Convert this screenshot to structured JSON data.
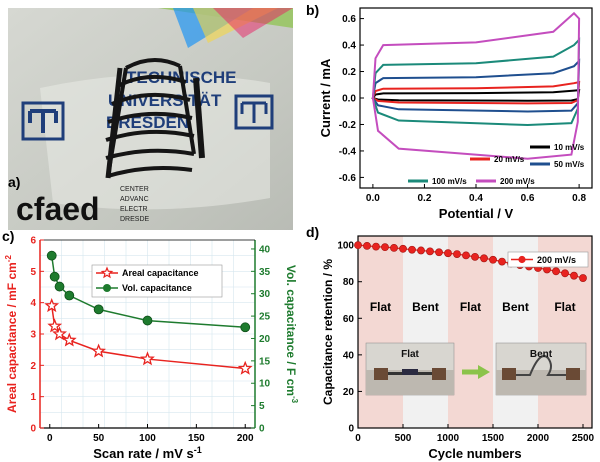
{
  "panel_labels": {
    "a": "a)",
    "b": "b)",
    "c": "c)",
    "d": "d)"
  },
  "photo": {
    "line1": "TECHNISCHE",
    "line2": "UNIVERSITÄT",
    "line3": "DRESDEN",
    "logo_text": "cfaed",
    "side1": "CENTER",
    "side2": "ADVANC",
    "side3": "ELECTR",
    "side4": "DRESDE"
  },
  "inset": {
    "flat": "Flat",
    "bent": "Bent"
  },
  "chart_data": [
    {
      "id": "b",
      "type": "line",
      "xlabel": "Potential / V",
      "ylabel": "Current / mA",
      "xlim": [
        -0.05,
        0.85
      ],
      "ylim": [
        -0.68,
        0.68
      ],
      "xticks": [
        "0.0",
        "0.2",
        "0.4",
        "0.6",
        "0.8"
      ],
      "yticks": [
        "-0.6",
        "-0.4",
        "-0.2",
        "0.0",
        "0.2",
        "0.4",
        "0.6"
      ],
      "legend": "bottom-right",
      "series": [
        {
          "name": "10 mV/s",
          "color": "#000000",
          "upper": 0.035,
          "lower": -0.02,
          "tail": 0.06
        },
        {
          "name": "20 mV/s",
          "color": "#e8231f",
          "upper": 0.07,
          "lower": -0.04,
          "tail": 0.12
        },
        {
          "name": "50 mV/s",
          "color": "#1f4f8f",
          "upper": 0.15,
          "lower": -0.1,
          "tail": 0.28
        },
        {
          "name": "100 mV/s",
          "color": "#1b8a7a",
          "upper": 0.25,
          "lower": -0.2,
          "tail": 0.44
        },
        {
          "name": "200 mV/s",
          "color": "#c44dbe",
          "upper": 0.4,
          "lower": -0.45,
          "tail": 0.6
        }
      ]
    },
    {
      "id": "c",
      "type": "line",
      "xlabel": "Scan rate / mV s",
      "xlabel_sup": "-1",
      "ylabel_left": "Areal capacitance / mF cm",
      "ylabel_left_sup": "-2",
      "ylabel_right": "Vol. capacitance / F cm",
      "ylabel_right_sup": "-3",
      "xlim": [
        -10,
        210
      ],
      "ylim_left": [
        0,
        6
      ],
      "ylim_right": [
        0,
        42
      ],
      "xticks": [
        "0",
        "50",
        "100",
        "150",
        "200"
      ],
      "yticks_left": [
        "0",
        "1",
        "2",
        "3",
        "4",
        "5",
        "6"
      ],
      "yticks_right": [
        "0",
        "5",
        "10",
        "15",
        "20",
        "25",
        "30",
        "35",
        "40"
      ],
      "legend": "top-center",
      "x": [
        2,
        5,
        10,
        20,
        50,
        100,
        200
      ],
      "series": [
        {
          "name": "Areal capacitance",
          "color": "#e8231f",
          "marker": "star",
          "axis": "left",
          "values": [
            3.9,
            3.25,
            3.0,
            2.8,
            2.45,
            2.2,
            1.9
          ]
        },
        {
          "name": "Vol. capacitance",
          "color": "#1e7b2e",
          "marker": "circle",
          "axis": "right",
          "values": [
            38.5,
            33.8,
            31.6,
            29.6,
            26.5,
            24.0,
            22.5
          ]
        }
      ]
    },
    {
      "id": "d",
      "type": "line",
      "xlabel": "Cycle numbers",
      "ylabel": "Capacitance retention / %",
      "xlim": [
        0,
        2600
      ],
      "ylim": [
        0,
        105
      ],
      "xticks": [
        "0",
        "500",
        "1000",
        "1500",
        "2000",
        "2500"
      ],
      "yticks": [
        "0",
        "20",
        "40",
        "60",
        "80",
        "100"
      ],
      "legend": "top-right",
      "bands": [
        {
          "from": 0,
          "to": 500,
          "label": "Flat",
          "shaded": true
        },
        {
          "from": 500,
          "to": 1000,
          "label": "Bent",
          "shaded": false
        },
        {
          "from": 1000,
          "to": 1500,
          "label": "Flat",
          "shaded": true
        },
        {
          "from": 1500,
          "to": 2000,
          "label": "Bent",
          "shaded": false
        },
        {
          "from": 2000,
          "to": 2600,
          "label": "Flat",
          "shaded": true
        }
      ],
      "series": [
        {
          "name": "200 mV/s",
          "color": "#e8231f",
          "x": [
            0,
            100,
            200,
            300,
            400,
            500,
            600,
            700,
            800,
            900,
            1000,
            1100,
            1200,
            1300,
            1400,
            1500,
            1600,
            1700,
            1800,
            1900,
            2000,
            2100,
            2200,
            2300,
            2400,
            2500
          ],
          "values": [
            100,
            99.6,
            99.2,
            98.9,
            98.5,
            98.0,
            97.5,
            97.1,
            96.6,
            96.1,
            95.6,
            95.1,
            94.4,
            93.6,
            92.8,
            92.0,
            91.0,
            90.0,
            89.1,
            88.3,
            87.5,
            86.7,
            85.7,
            84.6,
            83.3,
            82.0
          ]
        }
      ]
    }
  ]
}
